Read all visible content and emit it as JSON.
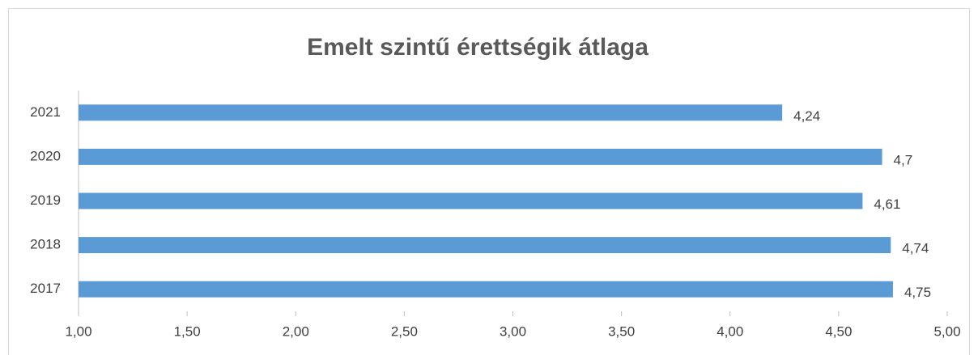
{
  "chart_data": {
    "type": "barh",
    "title": "Emelt szintű érettségik átlaga",
    "categories": [
      "2021",
      "2020",
      "2019",
      "2018",
      "2017"
    ],
    "values": [
      4.24,
      4.7,
      4.61,
      4.74,
      4.75
    ],
    "value_labels": [
      "4,24",
      "4,7",
      "4,61",
      "4,74",
      "4,75"
    ],
    "color": "#5b9bd5",
    "xlim": [
      1,
      5
    ],
    "xticks": [
      {
        "value": 1,
        "label": "1,00"
      },
      {
        "value": 1.5,
        "label": "1,50"
      },
      {
        "value": 2,
        "label": "2,00"
      },
      {
        "value": 2.5,
        "label": "2,50"
      },
      {
        "value": 3,
        "label": "3,00"
      },
      {
        "value": 3.5,
        "label": "3,50"
      },
      {
        "value": 4,
        "label": "4,00"
      },
      {
        "value": 4.5,
        "label": "4,50"
      },
      {
        "value": 5,
        "label": "5,00"
      }
    ],
    "grid": false
  }
}
